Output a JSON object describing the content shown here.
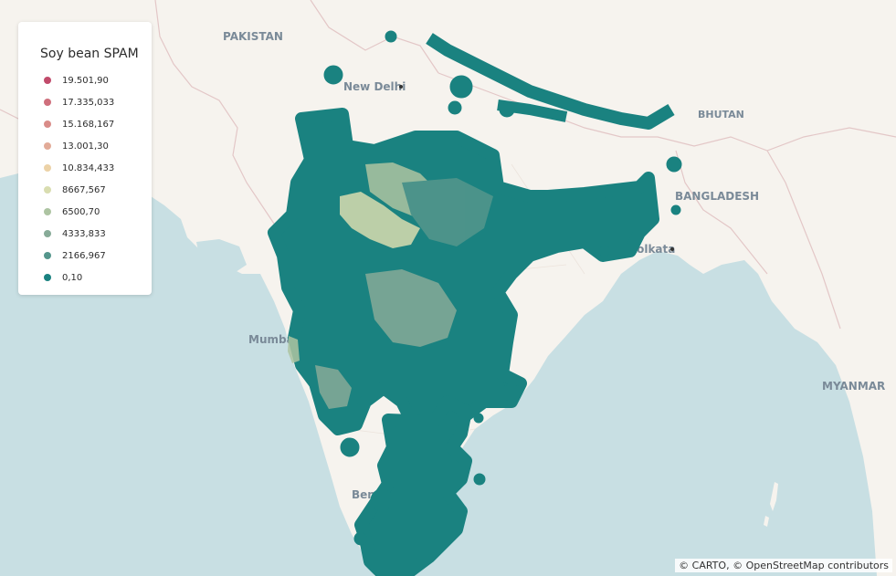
{
  "legend": {
    "title": "Soy bean SPAM",
    "items": [
      {
        "label": "19.501,90",
        "color": "#c14b6b"
      },
      {
        "label": "17.335,033",
        "color": "#cf6f7c"
      },
      {
        "label": "15.168,167",
        "color": "#d98c88"
      },
      {
        "label": "13.001,30",
        "color": "#e2ab98"
      },
      {
        "label": "10.834,433",
        "color": "#ecd2a7"
      },
      {
        "label": "8667,567",
        "color": "#d9ddb0"
      },
      {
        "label": "6500,70",
        "color": "#adc4a2"
      },
      {
        "label": "4333,833",
        "color": "#87ab98"
      },
      {
        "label": "2166,967",
        "color": "#55968c"
      },
      {
        "label": "0,10",
        "color": "#1a8280"
      }
    ]
  },
  "places": {
    "pakistan": "PAKISTAN",
    "new_delhi": "New Delhi",
    "bhutan": "BHUTAN",
    "bangladesh": "BANGLADESH",
    "kolkata": "Kolkata",
    "mumbai": "Mumbai",
    "bengaluru": "Bengaluru",
    "myanmar": "MYANMAR"
  },
  "attribution": {
    "carto": "© CARTO",
    "separator": ", © ",
    "osm": "OpenStreetMap",
    "contributors": " contributors"
  },
  "colors": {
    "sea": "#c8dfe3",
    "land": "#f6f3ee",
    "border": "#e3c7c7",
    "data_base": "#1a8280"
  }
}
